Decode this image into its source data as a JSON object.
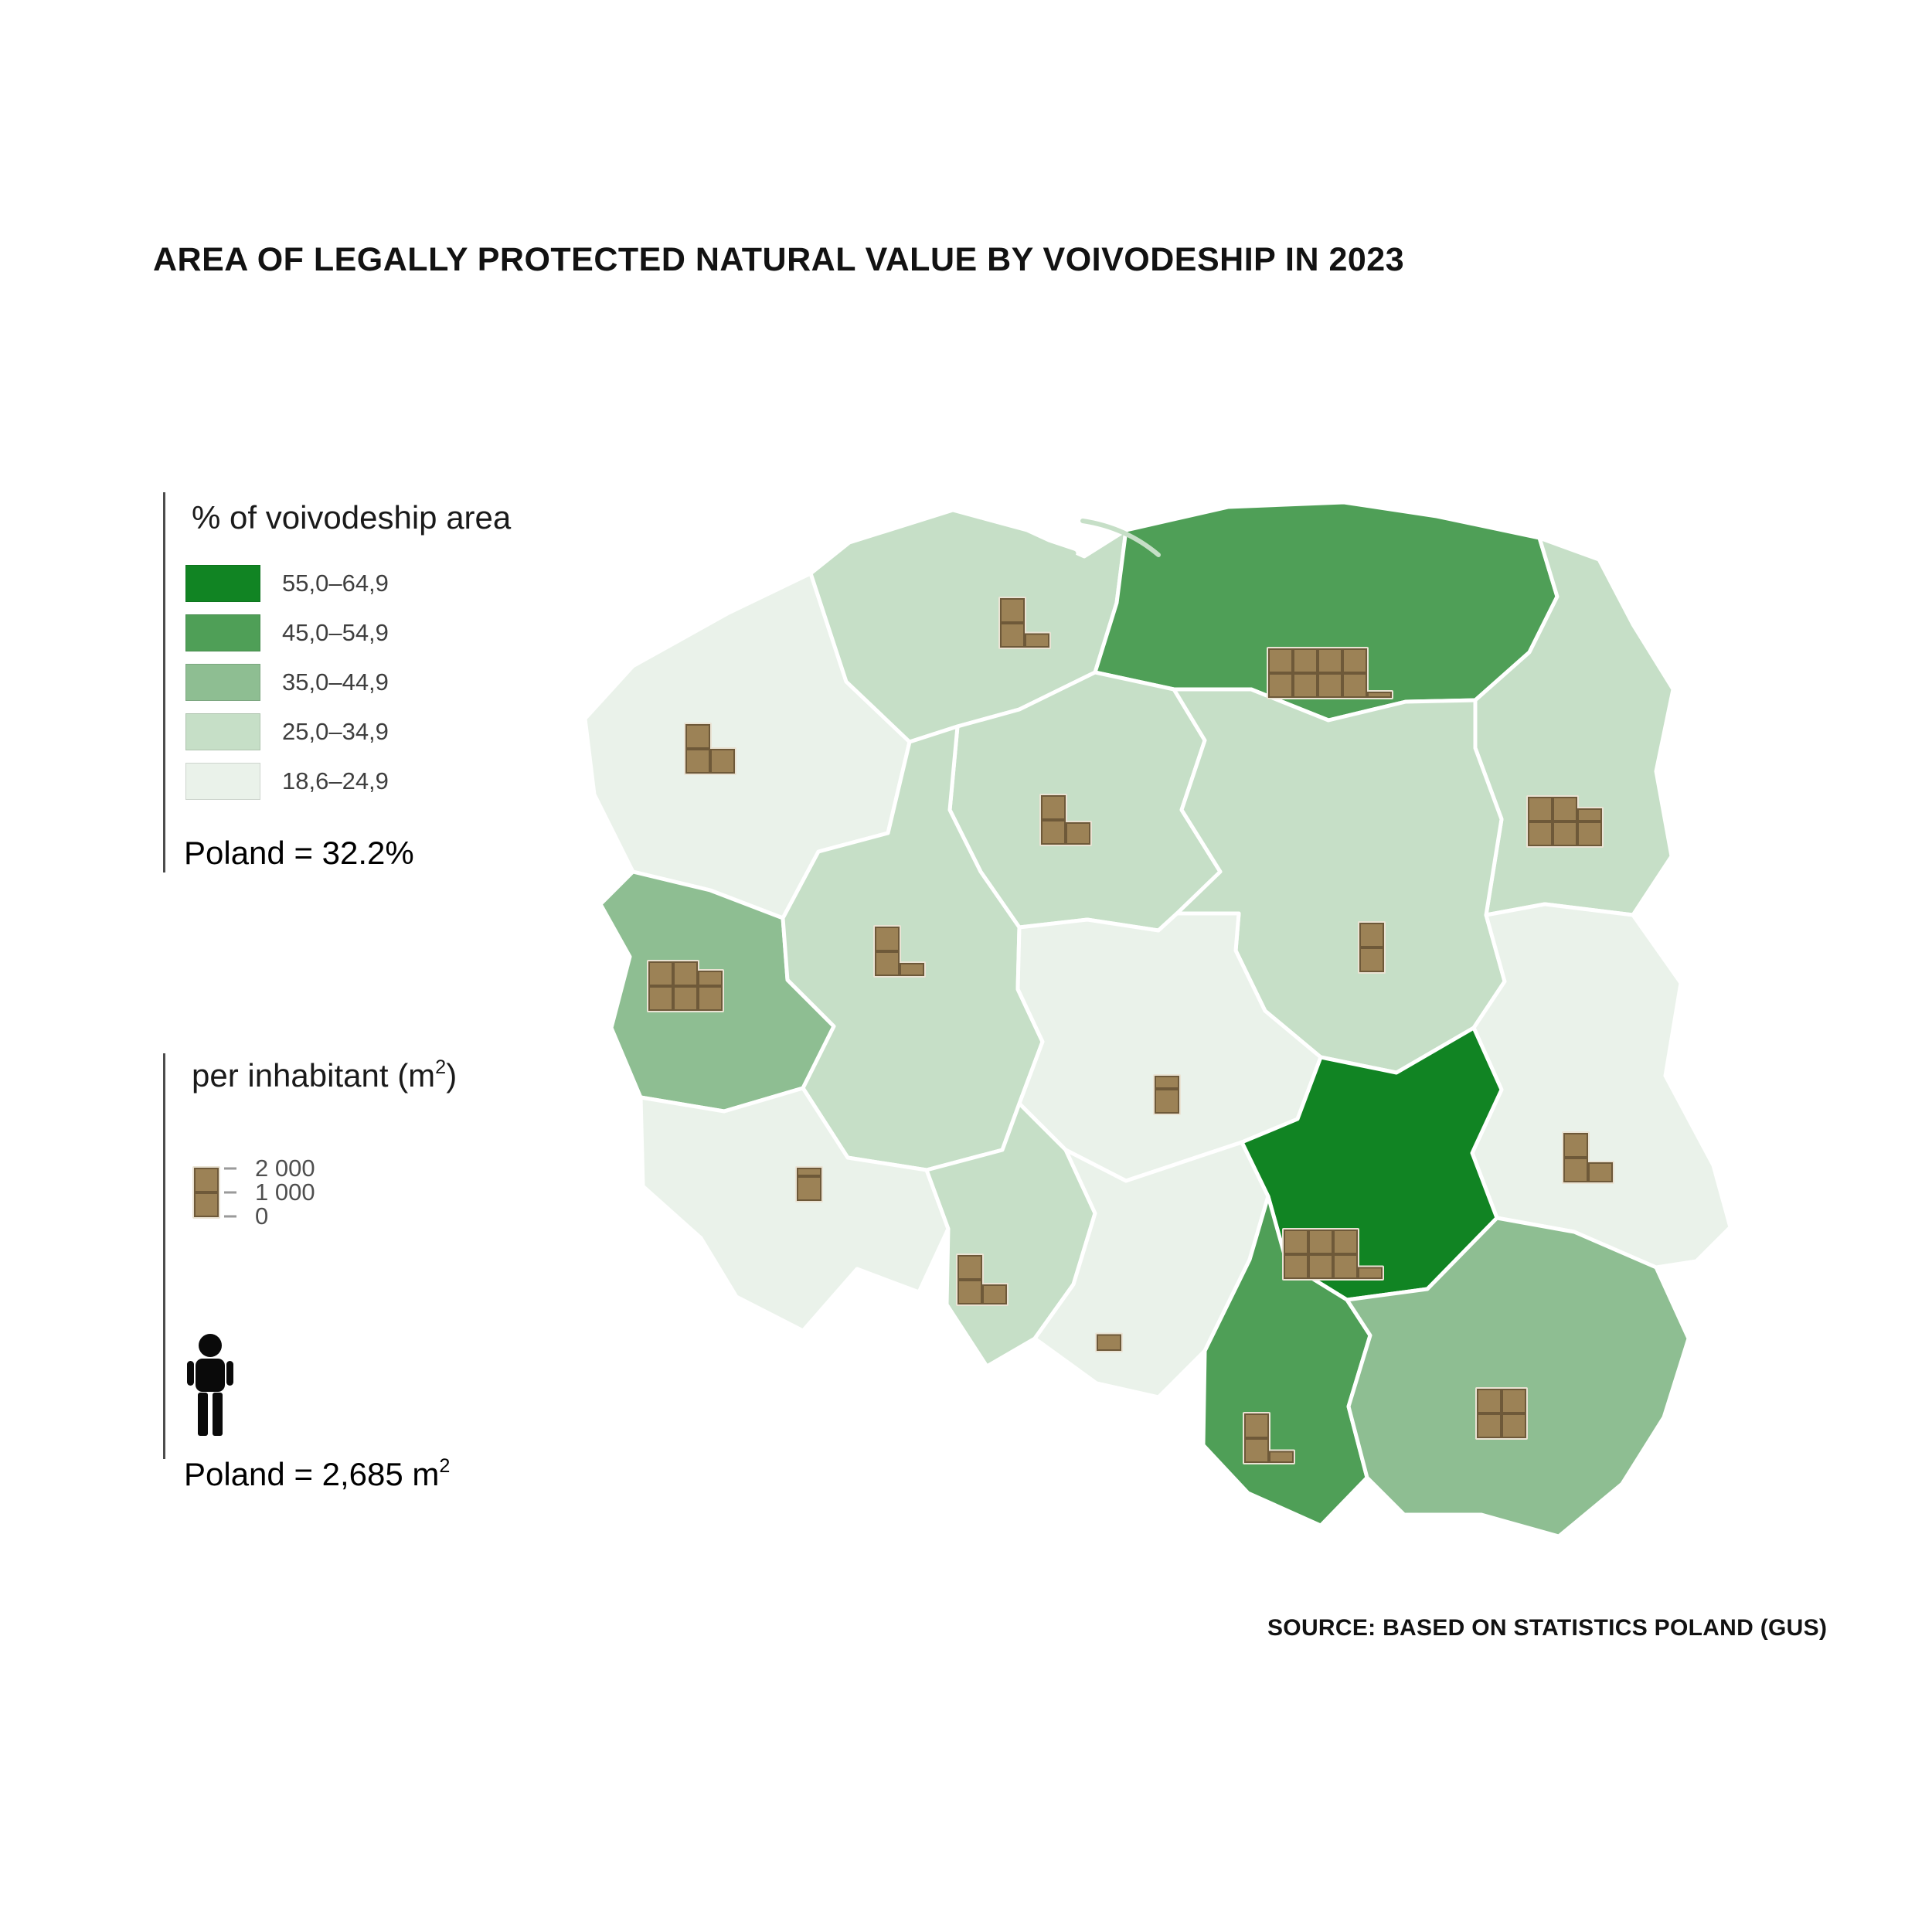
{
  "title": "AREA OF LEGALLY PROTECTED NATURAL VALUE BY VOIVODESHIP IN 2023",
  "source": "SOURCE: BASED ON STATISTICS POLAND (GUS)",
  "legend_percent": {
    "title": "% of voivodeship area",
    "classes": [
      {
        "label": "55,0–64,9",
        "color": "#118423"
      },
      {
        "label": "45,0–54,9",
        "color": "#4f9f57"
      },
      {
        "label": "35,0–44,9",
        "color": "#8ebe92"
      },
      {
        "label": "25,0–34,9",
        "color": "#c6dfc7"
      },
      {
        "label": "18,6–24,9",
        "color": "#eaf2ea"
      }
    ],
    "poland_note": "Poland = 32.2%"
  },
  "legend_per_inhabitant": {
    "title_prefix": "per inhabitant (m",
    "title_sup": "2",
    "title_suffix": ")",
    "scale_ticks": [
      "2 000",
      "1 000",
      "0"
    ],
    "poland_note_prefix": "Poland = 2,685 m",
    "poland_note_sup": "2"
  },
  "colors": {
    "bar_fill": "#9c8256",
    "bar_edge": "#6e5939",
    "bar_halo": "#eae3d4",
    "region_border": "#ffffff"
  },
  "chart_data": {
    "type": "choropleth_map",
    "title": "AREA OF LEGALLY PROTECTED NATURAL VALUE BY VOIVODESHIP IN 2023",
    "percent_classes": [
      "55,0–64,9",
      "45,0–54,9",
      "35,0–44,9",
      "25,0–34,9",
      "18,6–24,9"
    ],
    "poland_percent": 32.2,
    "poland_per_inhabitant_m2": 2685,
    "bar_square_unit_m2": 1000,
    "regions": [
      {
        "id": "zachodniopomorskie",
        "class_index": 4,
        "bar_squares": [
          2,
          1
        ],
        "per_inhabitant_m2_est": 3000
      },
      {
        "id": "pomorskie",
        "class_index": 3,
        "bar_squares": [
          2,
          0.55
        ],
        "per_inhabitant_m2_est": 2550
      },
      {
        "id": "warminsko-mazurskie",
        "class_index": 1,
        "bar_squares": [
          2,
          2,
          2,
          2,
          0.2
        ],
        "per_inhabitant_m2_est": 8200
      },
      {
        "id": "podlaskie",
        "class_index": 3,
        "bar_squares": [
          2,
          2,
          1.5
        ],
        "per_inhabitant_m2_est": 5500
      },
      {
        "id": "kujawsko-pomorskie",
        "class_index": 3,
        "bar_squares": [
          2,
          0.9
        ],
        "per_inhabitant_m2_est": 2900
      },
      {
        "id": "mazowieckie",
        "class_index": 3,
        "bar_squares": [
          2
        ],
        "per_inhabitant_m2_est": 2000
      },
      {
        "id": "lubelskie",
        "class_index": 4,
        "bar_squares": [
          2,
          0.8
        ],
        "per_inhabitant_m2_est": 2800
      },
      {
        "id": "lubuskie",
        "class_index": 2,
        "bar_squares": [
          2,
          2,
          1.6
        ],
        "per_inhabitant_m2_est": 5600
      },
      {
        "id": "wielkopolskie",
        "class_index": 3,
        "bar_squares": [
          2,
          0.5
        ],
        "per_inhabitant_m2_est": 2500
      },
      {
        "id": "lodzkie",
        "class_index": 4,
        "bar_squares": [
          1.5
        ],
        "per_inhabitant_m2_est": 1500
      },
      {
        "id": "dolnoslaskie",
        "class_index": 4,
        "bar_squares": [
          1.3
        ],
        "per_inhabitant_m2_est": 1300
      },
      {
        "id": "opolskie",
        "class_index": 3,
        "bar_squares": [
          2,
          0.8
        ],
        "per_inhabitant_m2_est": 2800
      },
      {
        "id": "slaskie",
        "class_index": 4,
        "bar_squares": [
          0.65
        ],
        "per_inhabitant_m2_est": 650
      },
      {
        "id": "swietokrzyskie",
        "class_index": 0,
        "bar_squares": [
          2,
          2,
          2,
          0.45
        ],
        "per_inhabitant_m2_est": 6450
      },
      {
        "id": "malopolskie",
        "class_index": 1,
        "bar_squares": [
          2,
          0.45
        ],
        "per_inhabitant_m2_est": 2450
      },
      {
        "id": "podkarpackie",
        "class_index": 2,
        "bar_squares": [
          2,
          2
        ],
        "per_inhabitant_m2_est": 4000
      }
    ]
  }
}
